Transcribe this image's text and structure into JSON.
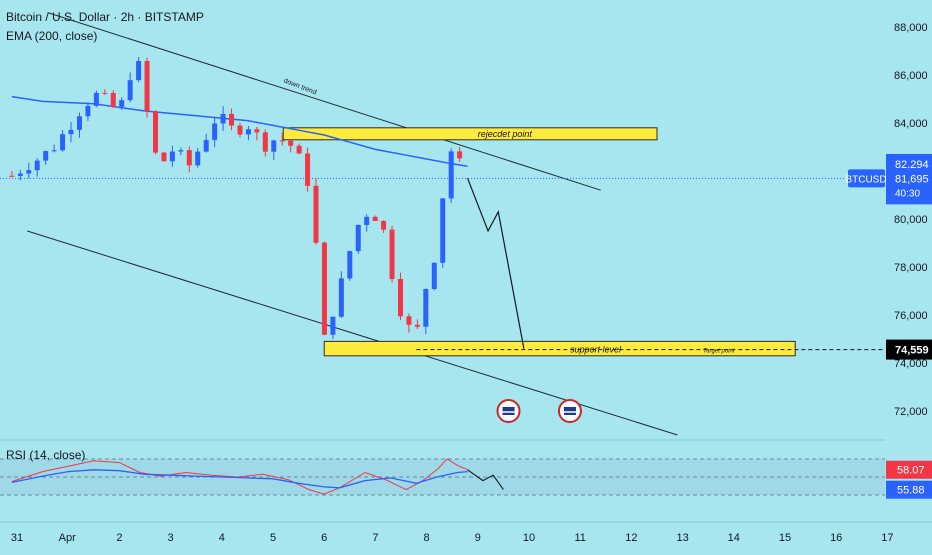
{
  "header": {
    "symbol_line": "Bitcoin / U.S. Dollar · 2h · BITSTAMP",
    "ema_label": "EMA (200, close)"
  },
  "rsi_header": "RSI (14, close)",
  "annotations": {
    "trend_label": "down trend",
    "rejection_label": "rejecdet point",
    "support_label": "support level",
    "target_label": "Target point"
  },
  "price_tag": {
    "symbol": "BTCUSD",
    "high": "82,294",
    "last": "81,695",
    "countdown": "40:30",
    "target": "74,559"
  },
  "rsi_tags": {
    "rsi": "58.07",
    "ma": "55.88"
  },
  "colors": {
    "background": "#a8e6ef",
    "up": "#2962ff",
    "down": "#f23645",
    "ema": "#2962ff",
    "zone": "#ffeb3b",
    "rsi_line": "#f23645",
    "rsi_ma": "#2962ff"
  },
  "chart_data": {
    "type": "candlestick",
    "title": "Bitcoin / U.S. Dollar · 2h · BITSTAMP",
    "timeframe": "2h",
    "x_ticks": [
      "31",
      "Apr",
      "2",
      "3",
      "4",
      "5",
      "6",
      "7",
      "8",
      "9",
      "10",
      "11",
      "12",
      "13",
      "14",
      "15",
      "16",
      "17"
    ],
    "y_ticks": [
      "88,000",
      "86,000",
      "84,000",
      "82,000",
      "80,000",
      "78,000",
      "76,000",
      "74,000",
      "72,000"
    ],
    "ylim": [
      70500,
      89000
    ],
    "close_path": [
      [
        30.9,
        81800
      ],
      [
        31.2,
        82300
      ],
      [
        31.5,
        82600
      ],
      [
        31.8,
        83200
      ],
      [
        32.2,
        84500
      ],
      [
        32.5,
        85200
      ],
      [
        32.8,
        84800
      ],
      [
        33.0,
        84400
      ],
      [
        33.3,
        86800
      ],
      [
        33.5,
        85500
      ],
      [
        33.6,
        82800
      ],
      [
        33.9,
        82400
      ],
      [
        34.1,
        83100
      ],
      [
        34.3,
        82000
      ],
      [
        34.6,
        83100
      ],
      [
        34.9,
        84300
      ],
      [
        35.2,
        83700
      ],
      [
        35.5,
        84000
      ],
      [
        35.8,
        83100
      ],
      [
        36.1,
        83400
      ],
      [
        36.4,
        83000
      ],
      [
        36.7,
        81500
      ],
      [
        36.8,
        79500
      ],
      [
        36.9,
        78000
      ],
      [
        37.0,
        74900
      ],
      [
        37.1,
        75800
      ],
      [
        37.3,
        77000
      ],
      [
        37.6,
        79500
      ],
      [
        37.8,
        80300
      ],
      [
        38.1,
        80100
      ],
      [
        38.3,
        78000
      ],
      [
        38.5,
        76200
      ],
      [
        38.7,
        75200
      ],
      [
        38.8,
        75000
      ],
      [
        38.9,
        76800
      ],
      [
        39.1,
        77700
      ],
      [
        39.4,
        82300
      ],
      [
        39.5,
        83000
      ],
      [
        39.6,
        82400
      ],
      [
        39.8,
        81700
      ]
    ],
    "ema_200": [
      [
        30.9,
        85100
      ],
      [
        31.5,
        84900
      ],
      [
        32.5,
        84800
      ],
      [
        33.5,
        84500
      ],
      [
        34.5,
        84300
      ],
      [
        35.5,
        84100
      ],
      [
        36.0,
        83900
      ],
      [
        36.5,
        83700
      ],
      [
        37.0,
        83500
      ],
      [
        37.5,
        83200
      ],
      [
        38.0,
        82900
      ],
      [
        38.5,
        82700
      ],
      [
        39.0,
        82500
      ],
      [
        39.5,
        82300
      ],
      [
        39.8,
        82200
      ]
    ],
    "rsi": {
      "name": "RSI (14, close)",
      "values": [
        [
          30.9,
          45
        ],
        [
          31.5,
          56
        ],
        [
          32.0,
          62
        ],
        [
          32.5,
          68
        ],
        [
          33.0,
          66
        ],
        [
          33.4,
          55
        ],
        [
          33.8,
          51
        ],
        [
          34.3,
          55
        ],
        [
          34.8,
          52
        ],
        [
          35.3,
          50
        ],
        [
          35.8,
          53
        ],
        [
          36.3,
          47
        ],
        [
          36.7,
          36
        ],
        [
          37.0,
          31
        ],
        [
          37.3,
          38
        ],
        [
          37.8,
          55
        ],
        [
          38.2,
          47
        ],
        [
          38.6,
          36
        ],
        [
          38.9,
          45
        ],
        [
          39.2,
          58
        ],
        [
          39.4,
          70
        ],
        [
          39.6,
          63
        ],
        [
          39.8,
          58
        ]
      ],
      "ma": [
        [
          30.9,
          44
        ],
        [
          31.5,
          51
        ],
        [
          32.0,
          56
        ],
        [
          32.5,
          58
        ],
        [
          33.0,
          57
        ],
        [
          33.5,
          53
        ],
        [
          34.0,
          52
        ],
        [
          34.5,
          51
        ],
        [
          35.0,
          50
        ],
        [
          35.5,
          49
        ],
        [
          36.0,
          48
        ],
        [
          36.5,
          43
        ],
        [
          37.0,
          39
        ],
        [
          37.3,
          38
        ],
        [
          37.8,
          46
        ],
        [
          38.3,
          49
        ],
        [
          38.8,
          43
        ],
        [
          39.2,
          50
        ],
        [
          39.6,
          55
        ],
        [
          39.8,
          56
        ]
      ],
      "bands": [
        70,
        30
      ]
    },
    "levels": {
      "last": 81695,
      "high": 82294,
      "target": 74559,
      "rejection_zone": [
        83300,
        83800
      ],
      "support_zone": [
        74300,
        74900
      ]
    },
    "projection": [
      [
        39.8,
        81700
      ],
      [
        40.2,
        79500
      ],
      [
        40.4,
        80300
      ],
      [
        40.9,
        74600
      ]
    ]
  }
}
